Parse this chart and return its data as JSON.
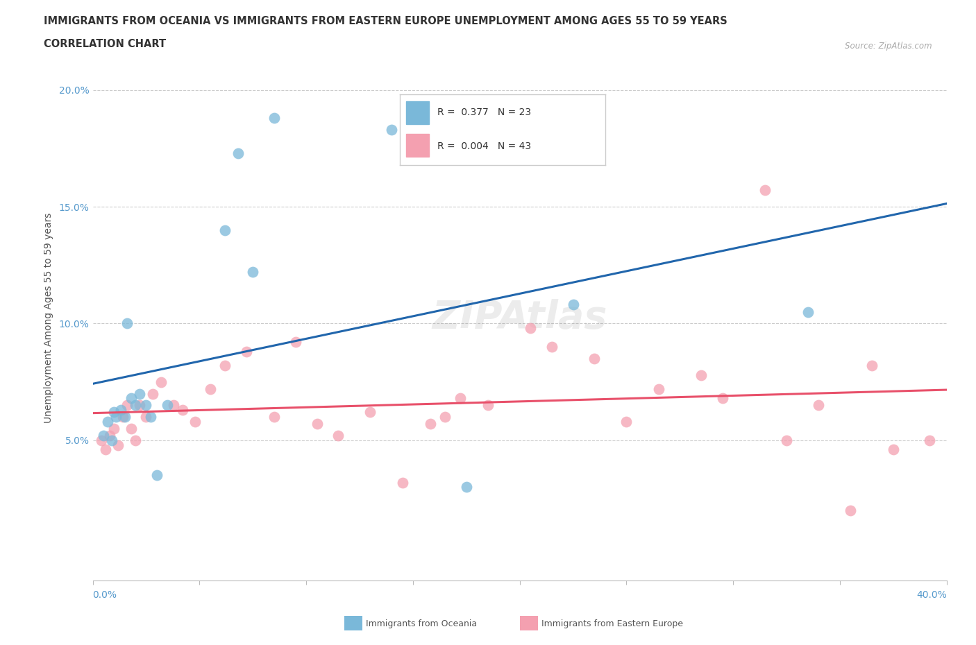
{
  "title_line1": "IMMIGRANTS FROM OCEANIA VS IMMIGRANTS FROM EASTERN EUROPE UNEMPLOYMENT AMONG AGES 55 TO 59 YEARS",
  "title_line2": "CORRELATION CHART",
  "source": "Source: ZipAtlas.com",
  "ylabel": "Unemployment Among Ages 55 to 59 years",
  "watermark": "ZIPAtlas",
  "legend1_r": "0.377",
  "legend1_n": "23",
  "legend2_r": "0.004",
  "legend2_n": "43",
  "series1_color": "#7ab8d9",
  "series2_color": "#f4a0b0",
  "line1_color": "#2166ac",
  "line2_color": "#e8506a",
  "xlim": [
    0.0,
    0.4
  ],
  "ylim": [
    -0.01,
    0.215
  ],
  "yticks": [
    0.05,
    0.1,
    0.15,
    0.2
  ],
  "ytick_labels": [
    "5.0%",
    "10.0%",
    "15.0%",
    "20.0%"
  ],
  "oceania_x": [
    0.005,
    0.007,
    0.009,
    0.01,
    0.011,
    0.013,
    0.015,
    0.016,
    0.018,
    0.02,
    0.022,
    0.025,
    0.027,
    0.03,
    0.035,
    0.062,
    0.068,
    0.075,
    0.085,
    0.14,
    0.175,
    0.225,
    0.335
  ],
  "oceania_y": [
    0.052,
    0.058,
    0.05,
    0.062,
    0.06,
    0.063,
    0.06,
    0.1,
    0.068,
    0.065,
    0.07,
    0.065,
    0.06,
    0.035,
    0.065,
    0.14,
    0.173,
    0.122,
    0.188,
    0.183,
    0.03,
    0.108,
    0.105
  ],
  "eastern_x": [
    0.004,
    0.006,
    0.008,
    0.01,
    0.012,
    0.014,
    0.016,
    0.018,
    0.02,
    0.022,
    0.025,
    0.028,
    0.032,
    0.038,
    0.042,
    0.048,
    0.055,
    0.062,
    0.072,
    0.085,
    0.095,
    0.105,
    0.115,
    0.13,
    0.145,
    0.158,
    0.165,
    0.172,
    0.185,
    0.205,
    0.215,
    0.235,
    0.25,
    0.265,
    0.285,
    0.295,
    0.315,
    0.325,
    0.34,
    0.355,
    0.365,
    0.375,
    0.392
  ],
  "eastern_y": [
    0.05,
    0.046,
    0.052,
    0.055,
    0.048,
    0.06,
    0.065,
    0.055,
    0.05,
    0.065,
    0.06,
    0.07,
    0.075,
    0.065,
    0.063,
    0.058,
    0.072,
    0.082,
    0.088,
    0.06,
    0.092,
    0.057,
    0.052,
    0.062,
    0.032,
    0.057,
    0.06,
    0.068,
    0.065,
    0.098,
    0.09,
    0.085,
    0.058,
    0.072,
    0.078,
    0.068,
    0.157,
    0.05,
    0.065,
    0.02,
    0.082,
    0.046,
    0.05
  ]
}
